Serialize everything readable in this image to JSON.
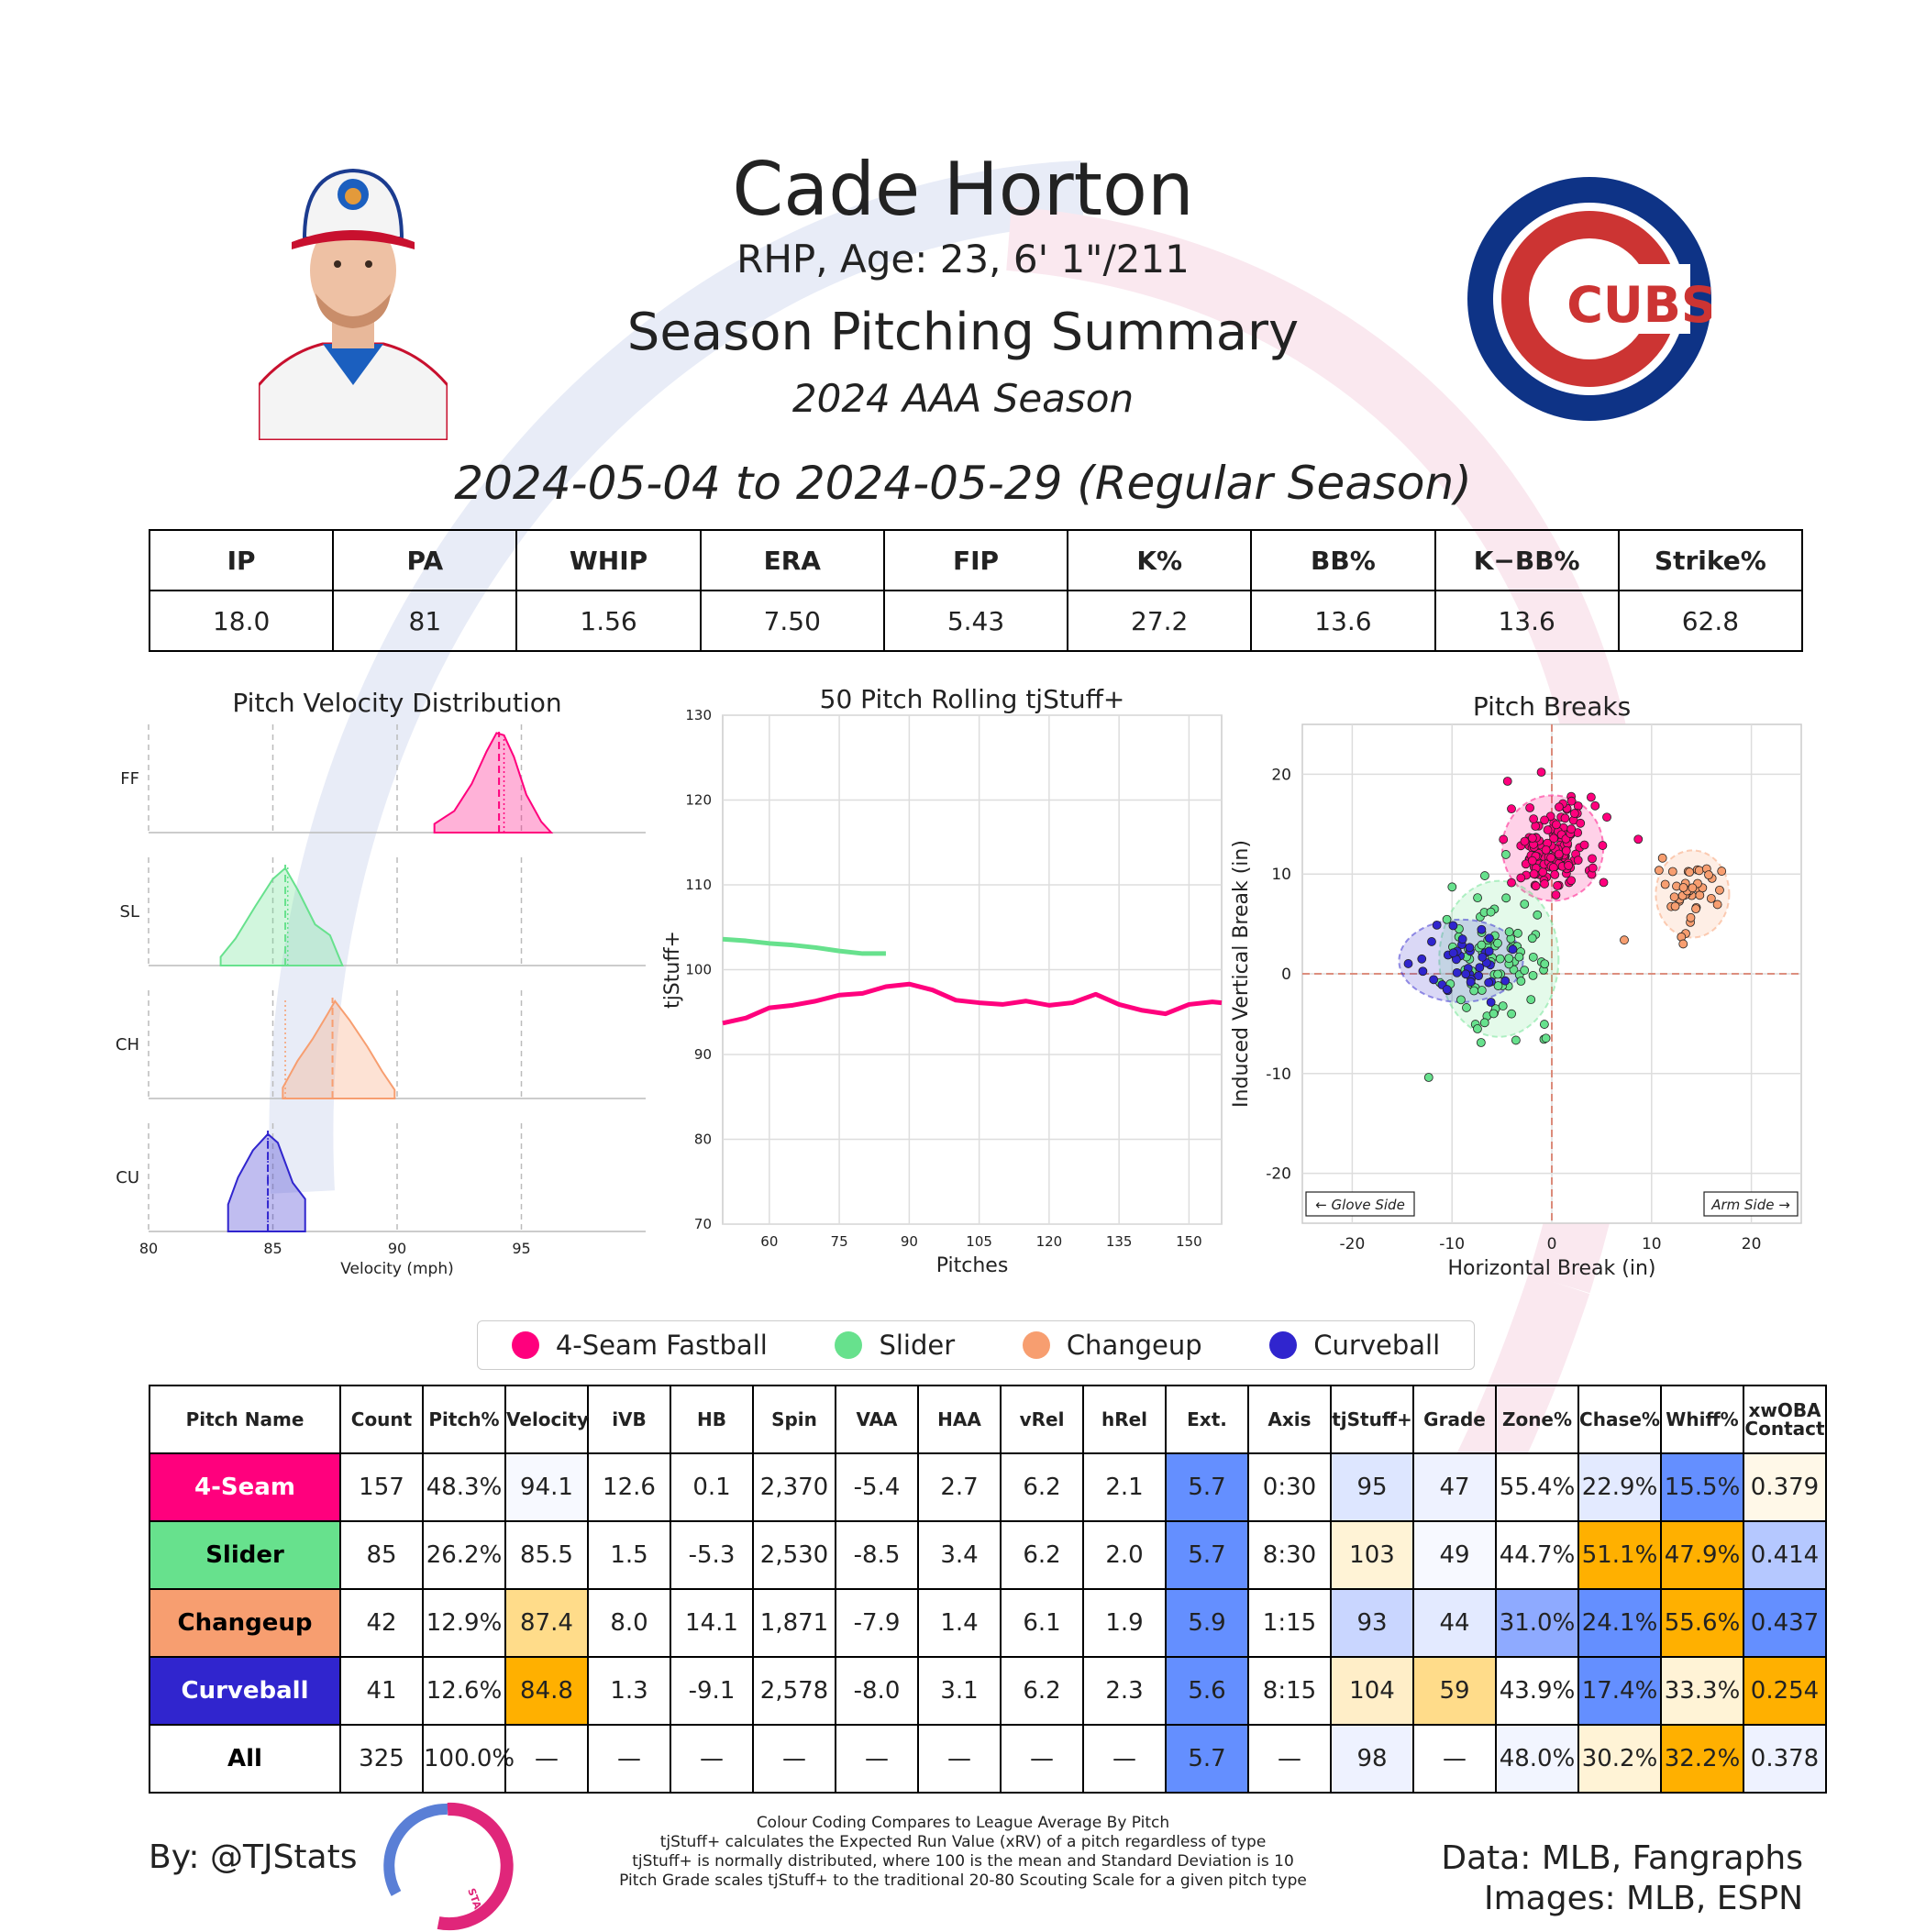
{
  "header": {
    "name": "Cade Horton",
    "bio": "RHP, Age: 23, 6' 1\"/211",
    "summary_title": "Season Pitching Summary",
    "season": "2024 AAA Season",
    "date_range": "2024-05-04 to 2024-05-29 (Regular Season)",
    "team_logo_text": "CUBS"
  },
  "colors": {
    "4-Seam Fastball": "#FF007D",
    "Slider": "#67E18D",
    "Changeup": "#F79E70",
    "Curveball": "#3025CE",
    "good_dark": "#648FFF",
    "good_light": "#C9D6FF",
    "neutral": "#FFFFFF",
    "bad_light": "#FFE1A0",
    "bad_dark": "#FFB000"
  },
  "stats": {
    "headers": [
      "IP",
      "PA",
      "WHIP",
      "ERA",
      "FIP",
      "K%",
      "BB%",
      "K−BB%",
      "Strike%"
    ],
    "values": [
      "18.0",
      "81",
      "1.56",
      "7.50",
      "5.43",
      "27.2",
      "13.6",
      "13.6",
      "62.8"
    ]
  },
  "chart_data": [
    {
      "type": "area",
      "title": "Pitch Velocity Distribution",
      "xlabel": "Velocity (mph)",
      "xlim": [
        80,
        100
      ],
      "xticks": [
        80,
        85,
        90,
        95
      ],
      "series": [
        {
          "name": "FF",
          "mean": 94.1,
          "league_avg": 94.3,
          "x": [
            91.5,
            92.3,
            93.0,
            93.6,
            94.0,
            94.3,
            94.7,
            95.2,
            95.8,
            96.2
          ],
          "y": [
            0.08,
            0.2,
            0.45,
            0.75,
            0.92,
            0.9,
            0.7,
            0.35,
            0.1,
            0.0
          ]
        },
        {
          "name": "SL",
          "mean": 85.5,
          "league_avg": 85.6,
          "x": [
            82.9,
            83.5,
            84.3,
            85.0,
            85.5,
            86.0,
            86.7,
            87.3,
            87.8
          ],
          "y": [
            0.08,
            0.25,
            0.55,
            0.8,
            0.9,
            0.7,
            0.38,
            0.28,
            0.0
          ]
        },
        {
          "name": "CH",
          "mean": 87.4,
          "league_avg": 85.5,
          "x": [
            85.4,
            86.0,
            86.6,
            87.2,
            87.5,
            88.1,
            88.8,
            89.4,
            89.9
          ],
          "y": [
            0.1,
            0.35,
            0.55,
            0.78,
            0.9,
            0.72,
            0.48,
            0.25,
            0.08
          ]
        },
        {
          "name": "CU",
          "mean": 84.8,
          "league_avg": 84.8,
          "x": [
            83.2,
            83.6,
            84.2,
            84.8,
            85.2,
            85.8,
            86.3
          ],
          "y": [
            0.25,
            0.5,
            0.75,
            0.9,
            0.82,
            0.45,
            0.3
          ]
        }
      ]
    },
    {
      "type": "line",
      "title": "50 Pitch Rolling tjStuff+",
      "xlabel": "Pitches",
      "ylabel": "tjStuff+",
      "xlim": [
        50,
        157
      ],
      "ylim": [
        70,
        130
      ],
      "xticks": [
        60,
        75,
        90,
        105,
        120,
        135,
        150
      ],
      "yticks": [
        70,
        80,
        90,
        100,
        110,
        120,
        130
      ],
      "series": [
        {
          "name": "Slider",
          "x": [
            50,
            55,
            60,
            65,
            70,
            75,
            80,
            85
          ],
          "y": [
            103.6,
            103.4,
            103.1,
            102.9,
            102.6,
            102.2,
            101.9,
            101.9
          ]
        },
        {
          "name": "4-Seam Fastball",
          "x": [
            50,
            55,
            60,
            65,
            70,
            75,
            80,
            85,
            90,
            95,
            100,
            105,
            110,
            115,
            120,
            125,
            130,
            135,
            140,
            145,
            150,
            155,
            157
          ],
          "y": [
            93.7,
            94.3,
            95.5,
            95.8,
            96.3,
            97.0,
            97.2,
            98.0,
            98.3,
            97.6,
            96.4,
            96.1,
            95.9,
            96.3,
            95.8,
            96.1,
            97.1,
            95.9,
            95.2,
            94.8,
            95.9,
            96.2,
            96.1
          ]
        }
      ]
    },
    {
      "type": "scatter",
      "title": "Pitch Breaks",
      "xlabel": "Horizontal Break (in)",
      "ylabel": "Induced Vertical Break (in)",
      "xlim": [
        -25,
        25
      ],
      "ylim": [
        -25,
        25
      ],
      "xticks": [
        -20,
        -10,
        0,
        10,
        20
      ],
      "yticks": [
        -20,
        -10,
        0,
        10,
        20
      ],
      "annotations": [
        "← Glove Side",
        "Arm Side →"
      ],
      "clusters": [
        {
          "name": "4-Seam Fastball",
          "count": 157,
          "cx": 0.1,
          "cy": 12.6,
          "sx": 2.2,
          "sy": 2.3
        },
        {
          "name": "Slider",
          "count": 85,
          "cx": -5.3,
          "cy": 1.5,
          "sx": 2.6,
          "sy": 3.4
        },
        {
          "name": "Changeup",
          "count": 42,
          "cx": 14.1,
          "cy": 8.0,
          "sx": 1.6,
          "sy": 1.9
        },
        {
          "name": "Curveball",
          "count": 41,
          "cx": -9.1,
          "cy": 1.3,
          "sx": 2.7,
          "sy": 1.8
        }
      ]
    }
  ],
  "legend": [
    "4-Seam Fastball",
    "Slider",
    "Changeup",
    "Curveball"
  ],
  "pitch_table": {
    "headers": [
      "Pitch Name",
      "Count",
      "Pitch%",
      "Velocity",
      "iVB",
      "HB",
      "Spin",
      "VAA",
      "HAA",
      "vRel",
      "hRel",
      "Ext.",
      "Axis",
      "tjStuff+",
      "Grade",
      "Zone%",
      "Chase%",
      "Whiff%",
      "xwOBA\nContact"
    ],
    "rows": [
      {
        "name": "4-Seam",
        "name_bg": "#FF007D",
        "name_color": "#ffffff",
        "cells": [
          "157",
          "48.3%",
          "94.1",
          "12.6",
          "0.1",
          "2,370",
          "-5.4",
          "2.7",
          "6.2",
          "2.1",
          "5.7",
          "0:30",
          "95",
          "47",
          "55.4%",
          "22.9%",
          "15.5%",
          "0.379"
        ],
        "cell_bg": [
          "#fff",
          "#fff",
          "#F7F9FF",
          "#fff",
          "#fff",
          "#fff",
          "#fff",
          "#fff",
          "#fff",
          "#fff",
          "#648FFF",
          "#fff",
          "#DDE6FF",
          "#EEF2FF",
          "#fff",
          "#E3EAFF",
          "#648FFF",
          "#FFF8E8"
        ]
      },
      {
        "name": "Slider",
        "name_bg": "#67E18D",
        "name_color": "#000000",
        "cells": [
          "85",
          "26.2%",
          "85.5",
          "1.5",
          "-5.3",
          "2,530",
          "-8.5",
          "3.4",
          "6.2",
          "2.0",
          "5.7",
          "8:30",
          "103",
          "49",
          "44.7%",
          "51.1%",
          "47.9%",
          "0.414"
        ],
        "cell_bg": [
          "#fff",
          "#fff",
          "#fff",
          "#fff",
          "#fff",
          "#fff",
          "#fff",
          "#fff",
          "#fff",
          "#fff",
          "#648FFF",
          "#fff",
          "#FFF3D6",
          "#F7F9FF",
          "#fff",
          "#FFB000",
          "#FFB000",
          "#B5C8FF"
        ]
      },
      {
        "name": "Changeup",
        "name_bg": "#F79E70",
        "name_color": "#000000",
        "cells": [
          "42",
          "12.9%",
          "87.4",
          "8.0",
          "14.1",
          "1,871",
          "-7.9",
          "1.4",
          "6.1",
          "1.9",
          "5.9",
          "1:15",
          "93",
          "44",
          "31.0%",
          "24.1%",
          "55.6%",
          "0.437"
        ],
        "cell_bg": [
          "#fff",
          "#fff",
          "#FFDC8A",
          "#fff",
          "#fff",
          "#fff",
          "#fff",
          "#fff",
          "#fff",
          "#fff",
          "#648FFF",
          "#fff",
          "#C9D6FF",
          "#E3EAFF",
          "#8EAAFF",
          "#648FFF",
          "#FFB000",
          "#648FFF"
        ]
      },
      {
        "name": "Curveball",
        "name_bg": "#3025CE",
        "name_color": "#ffffff",
        "cells": [
          "41",
          "12.6%",
          "84.8",
          "1.3",
          "-9.1",
          "2,578",
          "-8.0",
          "3.1",
          "6.2",
          "2.3",
          "5.6",
          "8:15",
          "104",
          "59",
          "43.9%",
          "17.4%",
          "33.3%",
          "0.254"
        ],
        "cell_bg": [
          "#fff",
          "#fff",
          "#FFB000",
          "#fff",
          "#fff",
          "#fff",
          "#fff",
          "#fff",
          "#fff",
          "#fff",
          "#648FFF",
          "#fff",
          "#FFEEC8",
          "#FFDC8A",
          "#fff",
          "#648FFF",
          "#FFF3D6",
          "#FFB000"
        ]
      },
      {
        "name": "All",
        "name_bg": "#ffffff",
        "name_color": "#000000",
        "cells": [
          "325",
          "100.0%",
          "—",
          "—",
          "—",
          "—",
          "—",
          "—",
          "—",
          "—",
          "5.7",
          "—",
          "98",
          "—",
          "48.0%",
          "30.2%",
          "32.2%",
          "0.378"
        ],
        "cell_bg": [
          "#fff",
          "#fff",
          "#fff",
          "#fff",
          "#fff",
          "#fff",
          "#fff",
          "#fff",
          "#fff",
          "#fff",
          "#648FFF",
          "#fff",
          "#EEF2FF",
          "#fff",
          "#F2F5FF",
          "#FFF3D6",
          "#FFB000",
          "#EEF2FF"
        ]
      }
    ]
  },
  "footer": {
    "byline": "By: @TJStats",
    "notes": [
      "Colour Coding Compares to League Average By Pitch",
      "tjStuff+ calculates the Expected Run Value (xRV) of a pitch regardless of type",
      "tjStuff+ is normally distributed, where 100 is the mean and Standard Deviation is 10",
      "Pitch Grade scales tjStuff+ to the traditional 20-80 Scouting Scale for a given pitch type"
    ],
    "credits": [
      "Data: MLB, Fangraphs",
      "Images: MLB, ESPN"
    ],
    "logo_text": "STATS"
  }
}
